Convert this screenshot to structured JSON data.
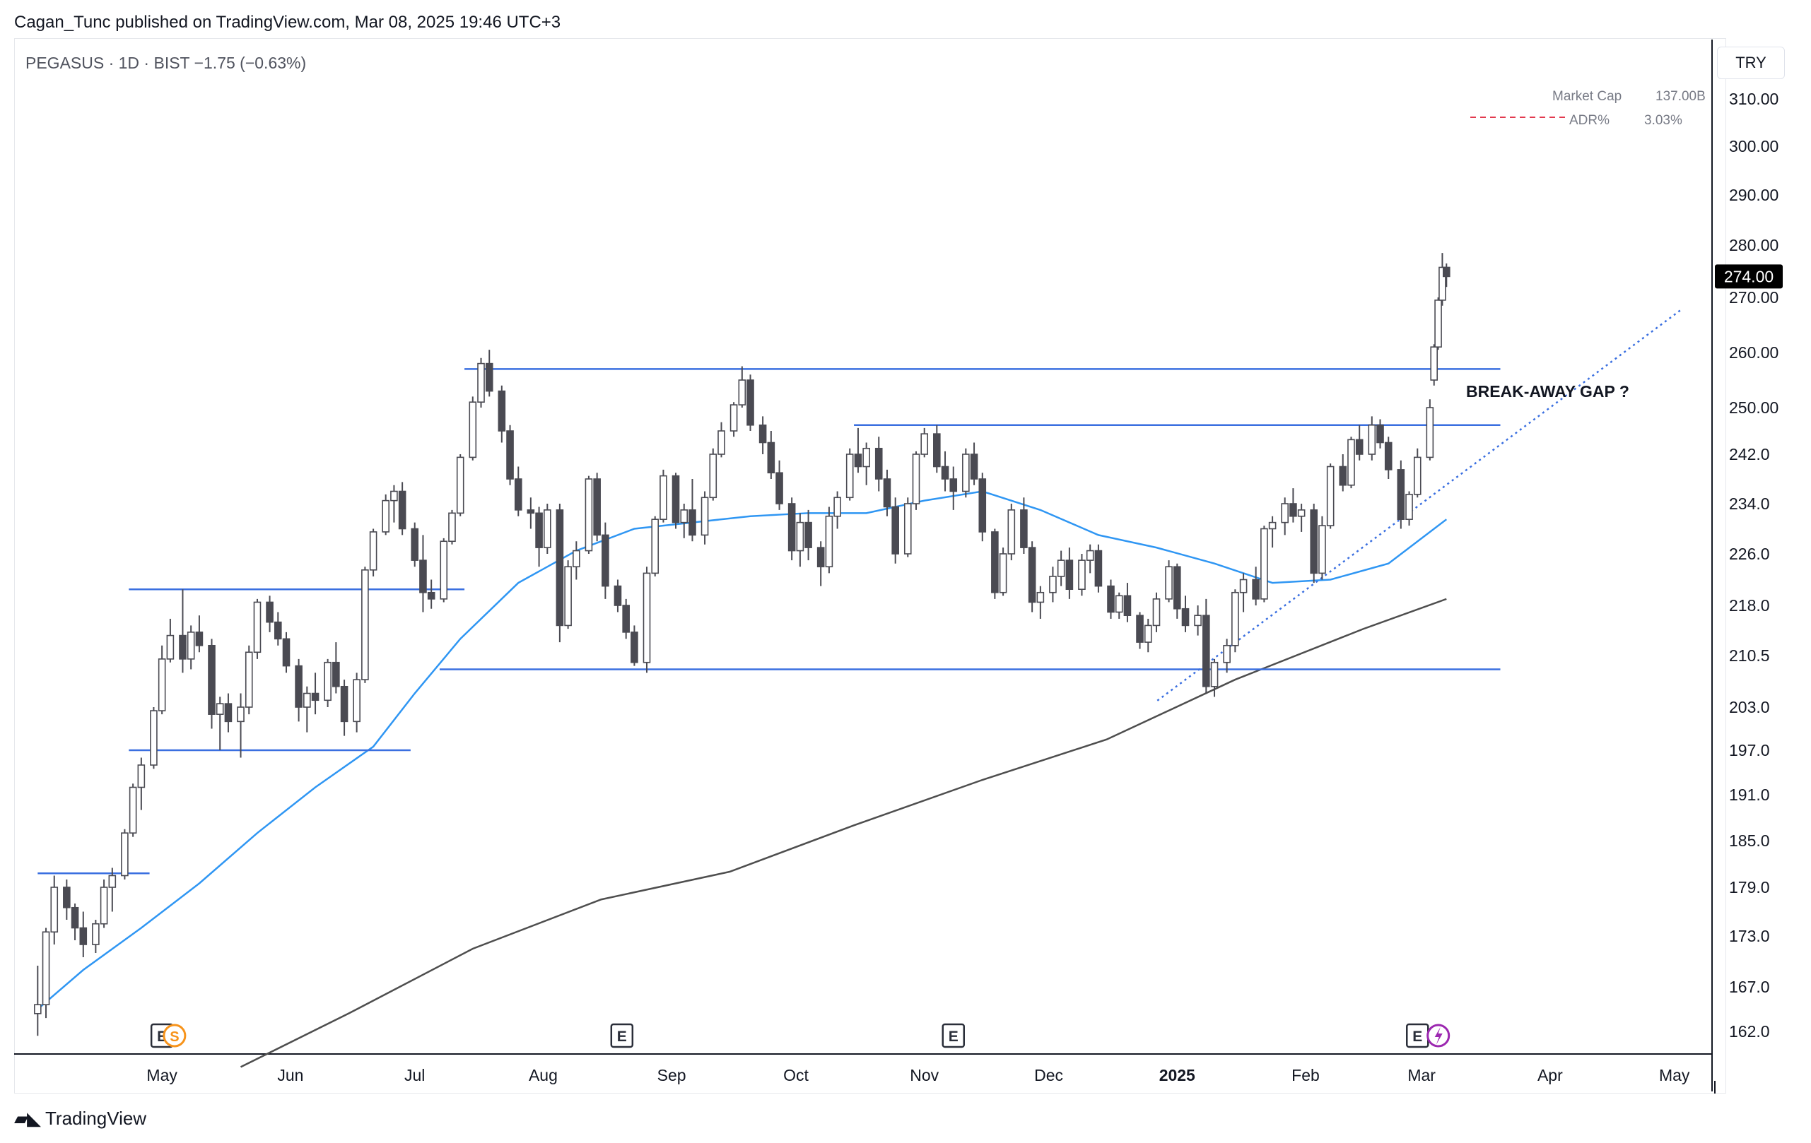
{
  "header": {
    "published_text": "Cagan_Tunc published on TradingView.com, Mar 08, 2025 19:46 UTC+3"
  },
  "pane": {
    "title": "PEGASUS · 1D · BIST  −1.75 (−0.63%)",
    "currency": "TRY",
    "market_cap_label": "Market Cap",
    "market_cap_value": "137.00B",
    "adr_label": "ADR%",
    "adr_value": "3.03%",
    "annotation": "BREAK-AWAY GAP ?",
    "last_price": "274.00"
  },
  "footer": {
    "brand": "TradingView"
  },
  "colors": {
    "up": "#ffffff",
    "down": "#4a4a52",
    "wick": "#4a4a52",
    "ma50": "#2f96f3",
    "ma200": "#4e4e4e",
    "lines": "#3a6fe0",
    "price_tag_bg": "#000000"
  },
  "chart_data": {
    "type": "candlestick",
    "title": "PEGASUS · 1D · BIST",
    "ylim": [
      158,
      318
    ],
    "price_ticks": [
      "310.00",
      "300.00",
      "290.00",
      "280.00",
      "270.00",
      "260.00",
      "250.00",
      "242.0",
      "234.0",
      "226.0",
      "218.0",
      "210.5",
      "203.0",
      "197.0",
      "191.0",
      "185.0",
      "179.0",
      "173.0",
      "167.0",
      "162.0"
    ],
    "time_ticks": [
      "May",
      "Jun",
      "Jul",
      "Aug",
      "Sep",
      "Oct",
      "Nov",
      "Dec",
      "2025",
      "Feb",
      "Mar",
      "Apr",
      "May"
    ],
    "event_markers": [
      {
        "label": "E",
        "date": "2024-05-01"
      },
      {
        "label": "S",
        "date": "2024-05-03"
      },
      {
        "label": "E",
        "date": "2024-08-20"
      },
      {
        "label": "E",
        "date": "2024-11-08"
      },
      {
        "label": "E",
        "date": "2025-02-28"
      }
    ],
    "horizontal_levels": [
      {
        "price": 180.8,
        "from": "2024-04-01",
        "to": "2024-04-28"
      },
      {
        "price": 220.5,
        "from": "2024-04-23",
        "to": "2024-07-13"
      },
      {
        "price": 197.0,
        "from": "2024-04-23",
        "to": "2024-06-30"
      },
      {
        "price": 257.0,
        "from": "2024-07-13",
        "to": "2025-03-20"
      },
      {
        "price": 208.5,
        "from": "2024-07-07",
        "to": "2025-03-20"
      },
      {
        "price": 247.0,
        "from": "2024-10-15",
        "to": "2025-03-20"
      }
    ],
    "trendline": {
      "from": {
        "date": "2025-01-01",
        "price": 206.0
      },
      "to": {
        "date": "2025-05-01",
        "price": 268.0
      },
      "style": "dotted"
    },
    "ma50": [
      [
        "2024-04-01",
        164.5
      ],
      [
        "2024-04-12",
        169.0
      ],
      [
        "2024-04-26",
        174.0
      ],
      [
        "2024-05-10",
        179.5
      ],
      [
        "2024-05-24",
        186.0
      ],
      [
        "2024-06-07",
        192.0
      ],
      [
        "2024-06-21",
        197.5
      ],
      [
        "2024-07-01",
        205.0
      ],
      [
        "2024-07-12",
        213.0
      ],
      [
        "2024-07-26",
        221.5
      ],
      [
        "2024-08-09",
        226.5
      ],
      [
        "2024-08-23",
        230.0
      ],
      [
        "2024-09-06",
        231.0
      ],
      [
        "2024-09-20",
        232.0
      ],
      [
        "2024-10-04",
        232.5
      ],
      [
        "2024-10-18",
        232.5
      ],
      [
        "2024-11-01",
        234.5
      ],
      [
        "2024-11-15",
        236.0
      ],
      [
        "2024-11-29",
        233.0
      ],
      [
        "2024-12-13",
        229.0
      ],
      [
        "2024-12-27",
        227.0
      ],
      [
        "2025-01-10",
        224.5
      ],
      [
        "2025-01-24",
        221.5
      ],
      [
        "2025-02-07",
        222.0
      ],
      [
        "2025-02-21",
        224.5
      ],
      [
        "2025-03-07",
        231.5
      ]
    ],
    "ma200": [
      [
        "2024-05-20",
        158.0
      ],
      [
        "2024-06-15",
        164.0
      ],
      [
        "2024-07-15",
        171.5
      ],
      [
        "2024-08-15",
        177.5
      ],
      [
        "2024-09-15",
        181.0
      ],
      [
        "2024-10-15",
        187.0
      ],
      [
        "2024-11-15",
        193.0
      ],
      [
        "2024-12-15",
        198.5
      ],
      [
        "2025-01-15",
        207.0
      ],
      [
        "2025-02-15",
        214.5
      ],
      [
        "2025-03-07",
        219.0
      ]
    ],
    "candles": [
      [
        "2024-04-01",
        164.0,
        169.5,
        161.5,
        165.0
      ],
      [
        "2024-04-03",
        165.0,
        174.0,
        163.5,
        173.5
      ],
      [
        "2024-04-05",
        173.5,
        180.5,
        172.0,
        179.0
      ],
      [
        "2024-04-08",
        179.0,
        180.0,
        175.0,
        176.5
      ],
      [
        "2024-04-10",
        176.5,
        177.0,
        172.5,
        174.0
      ],
      [
        "2024-04-12",
        174.0,
        176.0,
        170.5,
        172.0
      ],
      [
        "2024-04-15",
        172.0,
        175.0,
        171.0,
        174.5
      ],
      [
        "2024-04-17",
        174.5,
        180.0,
        174.0,
        179.0
      ],
      [
        "2024-04-19",
        179.0,
        181.5,
        176.0,
        180.5
      ],
      [
        "2024-04-22",
        180.5,
        186.5,
        180.0,
        186.0
      ],
      [
        "2024-04-24",
        186.0,
        192.5,
        185.5,
        192.0
      ],
      [
        "2024-04-26",
        192.0,
        196.0,
        189.0,
        195.0
      ],
      [
        "2024-04-29",
        195.0,
        203.0,
        194.5,
        202.5
      ],
      [
        "2024-05-01",
        202.5,
        212.0,
        202.0,
        210.0
      ],
      [
        "2024-05-03",
        210.0,
        216.0,
        209.5,
        213.5
      ],
      [
        "2024-05-06",
        213.5,
        220.5,
        208.0,
        210.0
      ],
      [
        "2024-05-08",
        210.0,
        215.0,
        208.5,
        214.0
      ],
      [
        "2024-05-10",
        214.0,
        216.5,
        211.0,
        212.0
      ],
      [
        "2024-05-13",
        212.0,
        213.0,
        200.0,
        202.0
      ],
      [
        "2024-05-15",
        202.0,
        204.5,
        197.0,
        203.5
      ],
      [
        "2024-05-17",
        203.5,
        205.0,
        199.5,
        201.0
      ],
      [
        "2024-05-20",
        201.0,
        205.0,
        196.0,
        203.0
      ],
      [
        "2024-05-22",
        203.0,
        212.0,
        202.0,
        211.0
      ],
      [
        "2024-05-24",
        211.0,
        219.0,
        210.0,
        218.5
      ],
      [
        "2024-05-27",
        218.5,
        219.5,
        214.0,
        215.5
      ],
      [
        "2024-05-29",
        215.5,
        217.0,
        212.0,
        213.0
      ],
      [
        "2024-05-31",
        213.0,
        214.0,
        208.0,
        209.0
      ],
      [
        "2024-06-03",
        209.0,
        210.0,
        201.0,
        203.0
      ],
      [
        "2024-06-05",
        203.0,
        206.0,
        199.5,
        205.0
      ],
      [
        "2024-06-07",
        205.0,
        208.0,
        202.0,
        204.0
      ],
      [
        "2024-06-10",
        204.0,
        210.0,
        203.0,
        209.5
      ],
      [
        "2024-06-12",
        209.5,
        212.5,
        205.0,
        206.0
      ],
      [
        "2024-06-14",
        206.0,
        207.0,
        199.0,
        201.0
      ],
      [
        "2024-06-17",
        201.0,
        208.0,
        199.5,
        207.0
      ],
      [
        "2024-06-19",
        207.0,
        224.0,
        206.5,
        223.5
      ],
      [
        "2024-06-21",
        223.5,
        230.0,
        222.5,
        229.5
      ],
      [
        "2024-06-24",
        229.5,
        235.5,
        229.0,
        234.5
      ],
      [
        "2024-06-26",
        234.5,
        237.0,
        231.0,
        236.0
      ],
      [
        "2024-06-28",
        236.0,
        237.5,
        229.0,
        230.0
      ],
      [
        "2024-07-01",
        230.0,
        231.0,
        224.0,
        225.0
      ],
      [
        "2024-07-03",
        225.0,
        229.0,
        217.0,
        220.0
      ],
      [
        "2024-07-05",
        220.0,
        222.0,
        217.5,
        219.0
      ],
      [
        "2024-07-08",
        219.0,
        228.5,
        218.5,
        228.0
      ],
      [
        "2024-07-10",
        228.0,
        233.0,
        227.5,
        232.5
      ],
      [
        "2024-07-12",
        232.5,
        242.0,
        232.0,
        241.5
      ],
      [
        "2024-07-15",
        241.5,
        252.0,
        241.0,
        251.0
      ],
      [
        "2024-07-17",
        251.0,
        259.0,
        250.0,
        258.0
      ],
      [
        "2024-07-19",
        258.0,
        260.5,
        252.0,
        253.0
      ],
      [
        "2024-07-22",
        253.0,
        254.0,
        244.0,
        246.0
      ],
      [
        "2024-07-24",
        246.0,
        247.0,
        237.0,
        238.0
      ],
      [
        "2024-07-26",
        238.0,
        240.0,
        232.0,
        233.0
      ],
      [
        "2024-07-29",
        233.0,
        235.0,
        230.0,
        232.5
      ],
      [
        "2024-07-31",
        232.5,
        233.5,
        224.0,
        227.0
      ],
      [
        "2024-08-02",
        227.0,
        234.0,
        226.0,
        233.0
      ],
      [
        "2024-08-05",
        233.0,
        234.0,
        212.5,
        215.0
      ],
      [
        "2024-08-07",
        215.0,
        225.0,
        214.5,
        224.0
      ],
      [
        "2024-08-09",
        224.0,
        228.0,
        222.0,
        226.5
      ],
      [
        "2024-08-12",
        226.5,
        238.5,
        226.0,
        238.0
      ],
      [
        "2024-08-14",
        238.0,
        239.0,
        228.0,
        229.0
      ],
      [
        "2024-08-16",
        229.0,
        231.0,
        219.0,
        221.0
      ],
      [
        "2024-08-19",
        221.0,
        222.0,
        217.0,
        218.0
      ],
      [
        "2024-08-21",
        218.0,
        219.0,
        213.0,
        214.0
      ],
      [
        "2024-08-23",
        214.0,
        215.0,
        209.0,
        209.5
      ],
      [
        "2024-08-26",
        209.5,
        224.0,
        208.0,
        223.0
      ],
      [
        "2024-08-28",
        223.0,
        232.0,
        222.5,
        231.5
      ],
      [
        "2024-08-30",
        231.5,
        239.5,
        231.0,
        238.5
      ],
      [
        "2024-09-02",
        238.5,
        239.0,
        230.0,
        231.0
      ],
      [
        "2024-09-04",
        231.0,
        234.0,
        228.5,
        233.0
      ],
      [
        "2024-09-06",
        233.0,
        238.0,
        228.0,
        229.0
      ],
      [
        "2024-09-09",
        229.0,
        236.0,
        227.5,
        235.0
      ],
      [
        "2024-09-11",
        235.0,
        243.0,
        234.5,
        242.0
      ],
      [
        "2024-09-13",
        242.0,
        247.5,
        241.5,
        246.0
      ],
      [
        "2024-09-16",
        246.0,
        251.0,
        245.0,
        250.5
      ],
      [
        "2024-09-18",
        250.5,
        257.5,
        250.0,
        255.0
      ],
      [
        "2024-09-20",
        255.0,
        256.0,
        246.0,
        247.0
      ],
      [
        "2024-09-23",
        247.0,
        248.5,
        242.0,
        244.0
      ],
      [
        "2024-09-25",
        244.0,
        246.0,
        238.0,
        239.0
      ],
      [
        "2024-09-27",
        239.0,
        241.0,
        233.0,
        234.0
      ],
      [
        "2024-09-30",
        234.0,
        235.0,
        225.0,
        226.5
      ],
      [
        "2024-10-02",
        226.5,
        232.5,
        224.0,
        231.0
      ],
      [
        "2024-10-04",
        231.0,
        233.0,
        225.0,
        227.0
      ],
      [
        "2024-10-07",
        227.0,
        228.0,
        221.0,
        224.0
      ],
      [
        "2024-10-09",
        224.0,
        233.5,
        223.0,
        232.0
      ],
      [
        "2024-10-11",
        232.0,
        236.0,
        230.0,
        235.0
      ],
      [
        "2024-10-14",
        235.0,
        243.0,
        234.5,
        242.0
      ],
      [
        "2024-10-16",
        242.0,
        246.5,
        239.0,
        240.0
      ],
      [
        "2024-10-18",
        240.0,
        244.0,
        237.0,
        243.0
      ],
      [
        "2024-10-21",
        243.0,
        245.0,
        236.0,
        238.0
      ],
      [
        "2024-10-23",
        238.0,
        239.5,
        232.0,
        233.5
      ],
      [
        "2024-10-25",
        233.5,
        235.0,
        224.5,
        226.0
      ],
      [
        "2024-10-28",
        226.0,
        235.0,
        225.5,
        234.0
      ],
      [
        "2024-10-30",
        234.0,
        242.5,
        233.0,
        242.0
      ],
      [
        "2024-11-01",
        242.0,
        246.5,
        241.5,
        245.5
      ],
      [
        "2024-11-04",
        245.5,
        247.0,
        239.0,
        240.0
      ],
      [
        "2024-11-06",
        240.0,
        242.5,
        236.0,
        238.0
      ],
      [
        "2024-11-08",
        238.0,
        240.0,
        233.0,
        236.0
      ],
      [
        "2024-11-11",
        236.0,
        243.0,
        235.0,
        242.0
      ],
      [
        "2024-11-13",
        242.0,
        244.0,
        237.0,
        238.0
      ],
      [
        "2024-11-15",
        238.0,
        239.0,
        228.0,
        229.5
      ],
      [
        "2024-11-18",
        229.5,
        230.0,
        219.0,
        220.0
      ],
      [
        "2024-11-20",
        220.0,
        227.0,
        219.5,
        226.0
      ],
      [
        "2024-11-22",
        226.0,
        234.0,
        225.0,
        233.0
      ],
      [
        "2024-11-25",
        233.0,
        235.0,
        226.0,
        227.0
      ],
      [
        "2024-11-27",
        227.0,
        228.0,
        217.0,
        218.5
      ],
      [
        "2024-11-29",
        218.5,
        221.0,
        216.0,
        220.0
      ],
      [
        "2024-12-02",
        220.0,
        224.0,
        218.5,
        222.5
      ],
      [
        "2024-12-04",
        222.5,
        226.5,
        221.0,
        225.0
      ],
      [
        "2024-12-06",
        225.0,
        227.0,
        219.0,
        220.5
      ],
      [
        "2024-12-09",
        220.5,
        226.0,
        219.5,
        225.0
      ],
      [
        "2024-12-11",
        225.0,
        227.5,
        223.0,
        226.5
      ],
      [
        "2024-12-13",
        226.5,
        227.5,
        220.0,
        221.0
      ],
      [
        "2024-12-16",
        221.0,
        222.0,
        216.0,
        217.0
      ],
      [
        "2024-12-18",
        217.0,
        220.0,
        216.0,
        219.5
      ],
      [
        "2024-12-20",
        219.5,
        221.5,
        215.5,
        216.5
      ],
      [
        "2024-12-23",
        216.5,
        217.0,
        211.5,
        212.5
      ],
      [
        "2024-12-25",
        212.5,
        216.0,
        211.0,
        215.0
      ],
      [
        "2024-12-27",
        215.0,
        220.0,
        214.0,
        219.0
      ],
      [
        "2024-12-30",
        219.0,
        225.0,
        218.5,
        224.0
      ],
      [
        "2025-01-01",
        224.0,
        224.5,
        216.0,
        217.5
      ],
      [
        "2025-01-03",
        217.5,
        219.5,
        214.0,
        215.0
      ],
      [
        "2025-01-06",
        215.0,
        218.0,
        213.5,
        216.5
      ],
      [
        "2025-01-08",
        216.5,
        219.0,
        205.0,
        206.0
      ],
      [
        "2025-01-10",
        206.0,
        210.0,
        204.5,
        209.5
      ],
      [
        "2025-01-13",
        209.5,
        213.0,
        208.0,
        212.0
      ],
      [
        "2025-01-15",
        212.0,
        220.5,
        211.0,
        220.0
      ],
      [
        "2025-01-17",
        220.0,
        223.0,
        217.0,
        222.0
      ],
      [
        "2025-01-20",
        222.0,
        224.0,
        218.0,
        219.0
      ],
      [
        "2025-01-22",
        219.0,
        230.5,
        218.5,
        230.0
      ],
      [
        "2025-01-24",
        230.0,
        232.0,
        227.0,
        231.0
      ],
      [
        "2025-01-27",
        231.0,
        235.0,
        229.0,
        234.0
      ],
      [
        "2025-01-29",
        234.0,
        236.5,
        231.0,
        232.0
      ],
      [
        "2025-01-31",
        232.0,
        234.0,
        229.5,
        233.0
      ],
      [
        "2025-02-03",
        233.0,
        234.0,
        221.5,
        223.0
      ],
      [
        "2025-02-05",
        223.0,
        232.0,
        222.0,
        230.5
      ],
      [
        "2025-02-07",
        230.5,
        240.5,
        230.0,
        240.0
      ],
      [
        "2025-02-10",
        240.0,
        242.0,
        236.0,
        237.0
      ],
      [
        "2025-02-12",
        237.0,
        245.0,
        236.5,
        244.5
      ],
      [
        "2025-02-14",
        244.5,
        247.0,
        241.0,
        242.0
      ],
      [
        "2025-02-17",
        242.0,
        248.5,
        241.0,
        247.0
      ],
      [
        "2025-02-19",
        247.0,
        248.0,
        243.0,
        244.0
      ],
      [
        "2025-02-21",
        244.0,
        245.0,
        238.0,
        239.5
      ],
      [
        "2025-02-24",
        239.5,
        241.0,
        230.0,
        231.5
      ],
      [
        "2025-02-26",
        231.5,
        236.0,
        230.5,
        235.5
      ],
      [
        "2025-02-28",
        235.5,
        243.0,
        235.0,
        241.5
      ],
      [
        "2025-03-03",
        241.5,
        251.5,
        241.0,
        250.0
      ],
      [
        "2025-03-04",
        255.0,
        261.5,
        254.0,
        261.0
      ],
      [
        "2025-03-05",
        261.0,
        270.0,
        260.5,
        269.5
      ],
      [
        "2025-03-06",
        269.5,
        278.5,
        268.5,
        275.75
      ],
      [
        "2025-03-07",
        275.75,
        276.5,
        272.0,
        274.0
      ]
    ]
  }
}
